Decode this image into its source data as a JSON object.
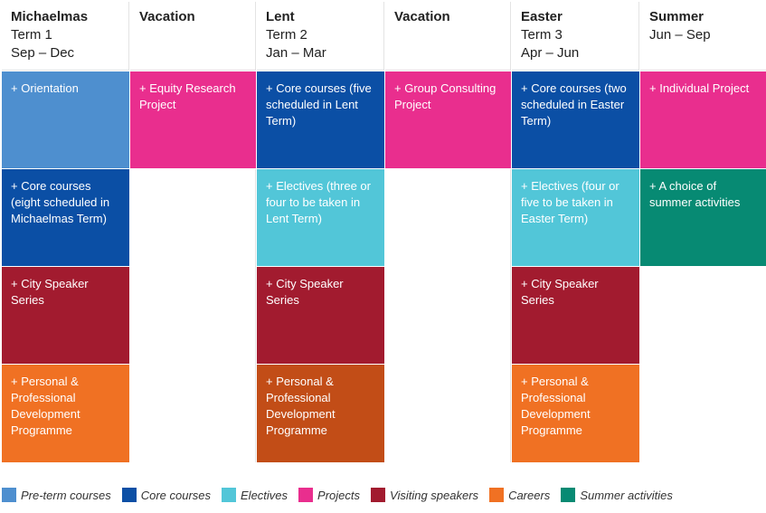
{
  "colors": {
    "pre_term": "#4e8fcf",
    "core": "#0b4fa5",
    "electives": "#52c6d8",
    "projects": "#e92e8e",
    "speakers": "#a21b2f",
    "careers": "#f07123",
    "careers_dark": "#c24d17",
    "summer": "#078a73"
  },
  "columns": [
    {
      "name": "Michaelmas",
      "term": "Term 1",
      "months": "Sep – Dec"
    },
    {
      "name": "Vacation",
      "term": "",
      "months": ""
    },
    {
      "name": "Lent",
      "term": "Term 2",
      "months": "Jan – Mar"
    },
    {
      "name": "Vacation",
      "term": "",
      "months": ""
    },
    {
      "name": "Easter",
      "term": "Term 3",
      "months": "Apr – Jun"
    },
    {
      "name": "Summer",
      "term": "Jun – Sep",
      "months": ""
    }
  ],
  "cells": {
    "orientation": "+ Orientation",
    "core_michaelmas": "+ Core courses (eight scheduled in Michaelmas Term)",
    "speakers_michaelmas": "+ City Speaker Series",
    "ppd_michaelmas": "+ Personal & Professional Development Programme",
    "equity_project": "+ Equity Research Project",
    "core_lent": "+ Core courses (five scheduled in Lent Term)",
    "electives_lent": "+ Electives (three or four to be taken in Lent Term)",
    "speakers_lent": "+ City Speaker Series",
    "ppd_lent": "+ Personal & Professional Development Programme",
    "group_consulting": "+ Group Consulting Project",
    "core_easter": "+ Core courses (two scheduled in Easter Term)",
    "electives_easter": "+ Electives (four or five to be taken in Easter Term)",
    "speakers_easter": "+ City Speaker Series",
    "ppd_easter": "+ Personal & Professional Development Programme",
    "individual_project": "+ Individual Project",
    "summer_activities": "+ A choice of summer activities"
  },
  "legend": [
    {
      "label": "Pre-term courses",
      "color": "#4e8fcf"
    },
    {
      "label": "Core courses",
      "color": "#0b4fa5"
    },
    {
      "label": "Electives",
      "color": "#52c6d8"
    },
    {
      "label": "Projects",
      "color": "#e92e8e"
    },
    {
      "label": "Visiting speakers",
      "color": "#a21b2f"
    },
    {
      "label": "Careers",
      "color": "#f07123"
    },
    {
      "label": "Summer activities",
      "color": "#078a73"
    }
  ]
}
